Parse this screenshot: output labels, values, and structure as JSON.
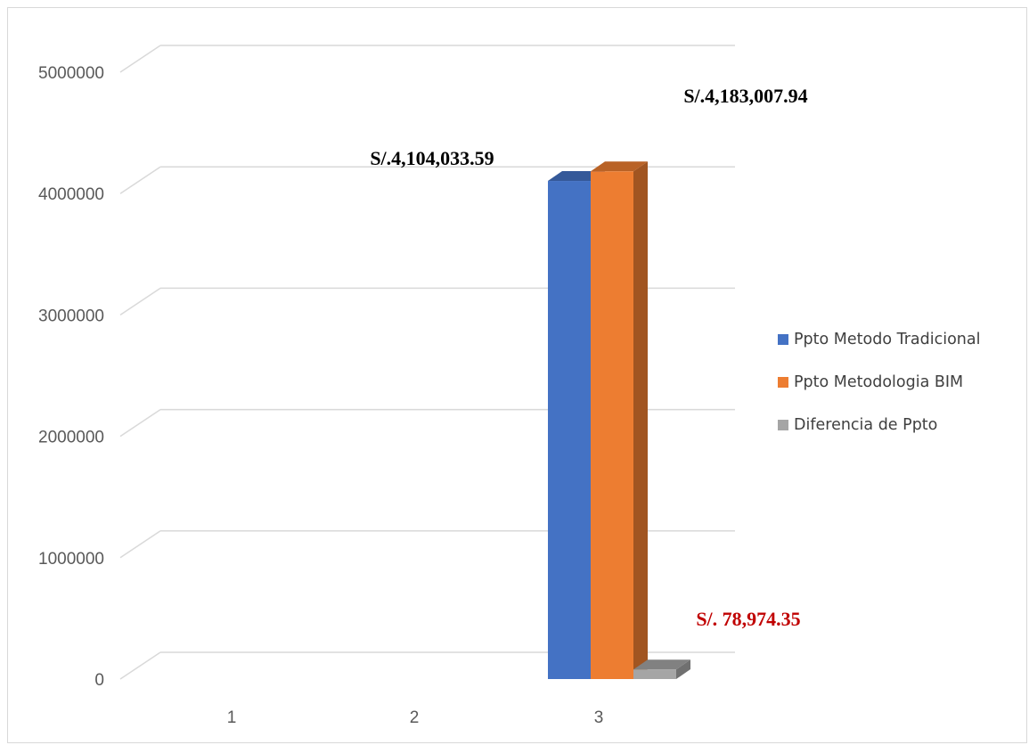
{
  "chart_data": {
    "type": "bar",
    "categories": [
      "1",
      "2",
      "3"
    ],
    "ylim": [
      0,
      5000000
    ],
    "yticks": [
      "0",
      "1000000",
      "2000000",
      "3000000",
      "4000000",
      "5000000"
    ],
    "grid": true,
    "legend_position": "right",
    "series": [
      {
        "name": "Ppto Metodo Tradicional",
        "values": [
          0,
          0,
          4104033.59
        ],
        "color": "#4472c4",
        "label": "S/.4,104,033.59",
        "label_color": "#000000"
      },
      {
        "name": "Ppto Metodologia BIM",
        "values": [
          0,
          0,
          4183007.94
        ],
        "color": "#ed7d31",
        "label": "S/.4,183,007.94",
        "label_color": "#000000"
      },
      {
        "name": "Diferencia de Ppto",
        "values": [
          0,
          0,
          78974.35
        ],
        "color": "#a5a5a5",
        "label": "S/. 78,974.35",
        "label_color": "#c00000"
      }
    ]
  }
}
